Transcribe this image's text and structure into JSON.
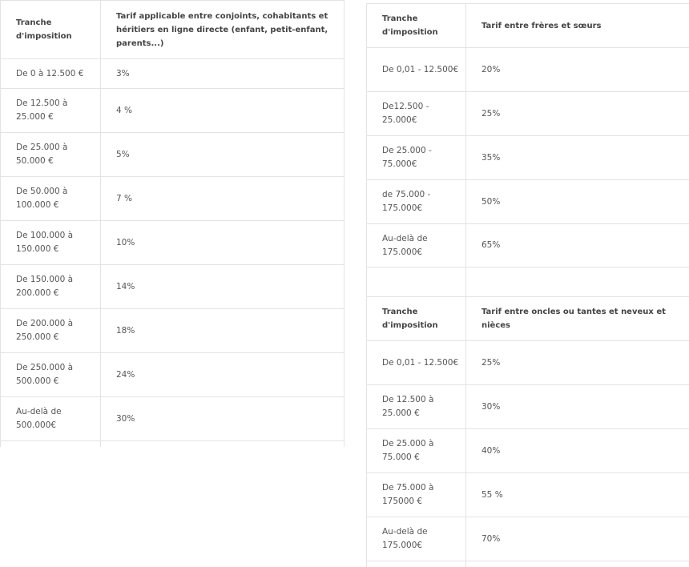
{
  "table_direct": {
    "header": [
      "Tranche d'imposition",
      "Tarif applicable entre conjoints, cohabitants et héritiers en ligne directe (enfant, petit-enfant, parents...)"
    ],
    "rows": [
      [
        "De 0 à 12.500 €",
        "3%"
      ],
      [
        "De 12.500 à 25.000 €",
        "4 %"
      ],
      [
        "De 25.000 à 50.000 €",
        "5%"
      ],
      [
        "De 50.000 à 100.000 €",
        "7 %"
      ],
      [
        "De 100.000 à 150.000 €",
        "10%"
      ],
      [
        "De 150.000 à 200.000 €",
        "14%"
      ],
      [
        "De 200.000 à 250.000 €",
        "18%"
      ],
      [
        "De 250.000 à 500.000 €",
        "24%"
      ],
      [
        "Au-delà de 500.000€",
        "30%"
      ]
    ]
  },
  "table_siblings": {
    "header": [
      "Tranche d'imposition",
      "Tarif entre frères et sœurs"
    ],
    "rows": [
      [
        "De 0,01 - 12.500€",
        "20%"
      ],
      [
        "De12.500 - 25.000€",
        "25%"
      ],
      [
        "De 25.000 - 75.000€",
        "35%"
      ],
      [
        "de 75.000 - 175.000€",
        "50%"
      ],
      [
        "Au-delà de 175.000€",
        "65%"
      ]
    ]
  },
  "table_uncles": {
    "header": [
      "Tranche d'imposition",
      "Tarif entre oncles ou tantes et neveux et nièces"
    ],
    "rows": [
      [
        "De 0,01 - 12.500€",
        "25%"
      ],
      [
        "De 12.500 à 25.000 €",
        "30%"
      ],
      [
        "De 25.000 à 75.000 €",
        "40%"
      ],
      [
        "De 75.000 à 175000 €",
        " 55 %"
      ],
      [
        "Au-delà de 175.000€",
        "70%"
      ]
    ]
  }
}
